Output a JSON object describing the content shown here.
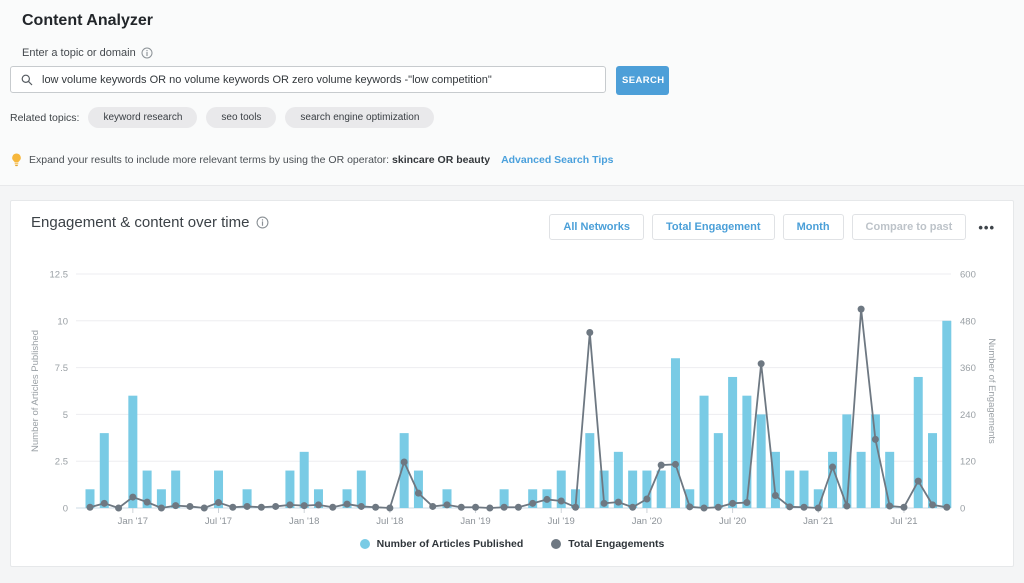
{
  "page": {
    "title": "Content Analyzer",
    "search_section": {
      "label": "Enter a topic or domain",
      "input_value": "low volume keywords OR no volume keywords OR zero volume keywords -\"low competition\"",
      "search_button": "SEARCH"
    },
    "related_topics": {
      "label": "Related topics:",
      "items": [
        "keyword research",
        "seo tools",
        "search engine optimization"
      ]
    },
    "tip": {
      "text": "Expand your results to include more relevant terms by using the OR operator:",
      "highlight": "skincare OR beauty",
      "link": "Advanced Search Tips"
    }
  },
  "panel": {
    "title": "Engagement & content over time",
    "filters": {
      "network": "All Networks",
      "metric": "Total Engagement",
      "interval": "Month",
      "compare": "Compare to past"
    },
    "more_icon": "•••"
  },
  "chart_data": {
    "type": "bar",
    "subtype": "dual-axis bar + line",
    "title": "Engagement & content over time",
    "x": [
      "Oct '16",
      "Nov '16",
      "Dec '16",
      "Jan '17",
      "Feb '17",
      "Mar '17",
      "Apr '17",
      "May '17",
      "Jun '17",
      "Jul '17",
      "Aug '17",
      "Sep '17",
      "Oct '17",
      "Nov '17",
      "Dec '17",
      "Jan '18",
      "Feb '18",
      "Mar '18",
      "Apr '18",
      "May '18",
      "Jun '18",
      "Jul '18",
      "Aug '18",
      "Sep '18",
      "Oct '18",
      "Nov '18",
      "Dec '18",
      "Jan '19",
      "Feb '19",
      "Mar '19",
      "Apr '19",
      "May '19",
      "Jun '19",
      "Jul '19",
      "Aug '19",
      "Sep '19",
      "Oct '19",
      "Nov '19",
      "Dec '19",
      "Jan '20",
      "Feb '20",
      "Mar '20",
      "Apr '20",
      "May '20",
      "Jun '20",
      "Jul '20",
      "Aug '20",
      "Sep '20",
      "Oct '20",
      "Nov '20",
      "Dec '20",
      "Jan '21",
      "Feb '21",
      "Mar '21",
      "Apr '21",
      "May '21",
      "Jun '21",
      "Jul '21",
      "Aug '21",
      "Sep '21",
      "Oct '21"
    ],
    "series": [
      {
        "name": "Number of Articles Published",
        "kind": "bar",
        "axis": "left",
        "color": "#79cbe5",
        "values": [
          1,
          4,
          0,
          6,
          2,
          1,
          2,
          0,
          0,
          2,
          0,
          1,
          0,
          0,
          2,
          3,
          1,
          0,
          1,
          2,
          0,
          0,
          4,
          2,
          0,
          1,
          0,
          0,
          0,
          1,
          0,
          1,
          1,
          2,
          1,
          4,
          2,
          3,
          2,
          2,
          2,
          8,
          1,
          6,
          4,
          7,
          6,
          5,
          3,
          2,
          2,
          1,
          3,
          5,
          3,
          5,
          3,
          0,
          7,
          4,
          10
        ]
      },
      {
        "name": "Total Engagements",
        "kind": "line",
        "axis": "right",
        "color": "#6e7882",
        "values": [
          2,
          12,
          0,
          28,
          15,
          0,
          6,
          4,
          0,
          14,
          2,
          4,
          2,
          4,
          8,
          6,
          8,
          2,
          10,
          4,
          2,
          0,
          118,
          38,
          4,
          8,
          2,
          2,
          0,
          2,
          2,
          12,
          22,
          18,
          2,
          450,
          12,
          15,
          2,
          23,
          110,
          112,
          3,
          0,
          2,
          12,
          14,
          370,
          32,
          3,
          2,
          0,
          105,
          5,
          510,
          176,
          5,
          2,
          69,
          8,
          2
        ]
      }
    ],
    "left_axis": {
      "label": "Number of Articles Published",
      "range": [
        0,
        12.5
      ],
      "ticks": [
        0,
        2.5,
        5,
        7.5,
        10,
        12.5
      ]
    },
    "right_axis": {
      "label": "Number of Engagements",
      "range": [
        0,
        600
      ],
      "ticks": [
        0,
        120,
        240,
        360,
        480,
        600
      ]
    },
    "x_tick_labels": [
      "Jan '17",
      "Jul '17",
      "Jan '18",
      "Jul '18",
      "Jan '19",
      "Jul '19",
      "Jan '20",
      "Jul '20",
      "Jan '21",
      "Jul '21"
    ],
    "x_tick_indices": [
      3,
      9,
      15,
      21,
      27,
      33,
      39,
      45,
      51,
      57
    ],
    "grid": true,
    "legend_position": "bottom"
  },
  "colors": {
    "accent_blue": "#4a9fd8",
    "search_button_bg": "#4d9fd8",
    "bar_blue": "#79cbe5",
    "line_gray": "#6e7882",
    "grid_line": "#ededf0",
    "axis_text": "#9aa0a5",
    "link_blue": "#4aa0dc",
    "bulb_yellow": "#f6b73c"
  }
}
